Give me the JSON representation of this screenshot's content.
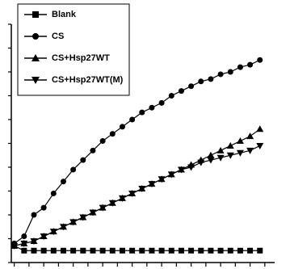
{
  "chart_data": {
    "type": "line",
    "x": [
      0,
      1,
      2,
      3,
      4,
      5,
      6,
      7,
      8,
      9,
      10,
      11,
      12,
      13,
      14,
      15,
      16,
      17,
      18,
      19,
      20,
      21,
      22,
      23,
      24,
      25
    ],
    "series": [
      {
        "name": "Blank",
        "color": "#000000",
        "marker": "square",
        "values": [
          7,
          5,
          5,
          5,
          5,
          5,
          5,
          5,
          5,
          5,
          5,
          5,
          5,
          5,
          5,
          5,
          5,
          5,
          5,
          5,
          5,
          5,
          5,
          5,
          5,
          5
        ]
      },
      {
        "name": "CS",
        "color": "#000000",
        "marker": "circle",
        "values": [
          8,
          11,
          20,
          23,
          29,
          34,
          39,
          43,
          47,
          51,
          54,
          57,
          60,
          63,
          65,
          67,
          70,
          72,
          74,
          76,
          77,
          79,
          80,
          82,
          83,
          85
        ]
      },
      {
        "name": "CS+Hsp27WT",
        "color": "#000000",
        "marker": "triangle",
        "values": [
          7,
          8,
          9,
          11,
          13,
          15,
          17,
          19,
          21,
          23,
          25,
          27,
          29,
          31,
          33,
          35,
          37,
          39,
          41,
          43,
          45,
          47,
          49,
          51,
          53,
          56
        ]
      },
      {
        "name": "CS+Hsp27WT(M)",
        "color": "#000000",
        "marker": "triangle-down",
        "values": [
          7,
          8,
          9,
          11,
          13,
          15,
          17,
          19,
          21,
          23,
          25,
          27,
          29,
          31,
          33,
          35,
          37,
          39,
          40,
          42,
          43,
          44,
          45,
          46,
          47,
          49
        ]
      }
    ],
    "xlim": [
      -0.3,
      26.5
    ],
    "xticks": [
      0,
      1.5,
      3,
      4.5,
      6,
      7.5,
      9,
      10.5,
      12,
      13.5,
      15,
      16.5,
      18,
      19.5,
      21,
      22.5,
      24,
      25.5
    ],
    "ylim": [
      0,
      100
    ],
    "yticks": [
      0,
      10,
      20,
      30,
      40,
      50,
      60,
      70,
      80,
      90,
      100
    ]
  }
}
